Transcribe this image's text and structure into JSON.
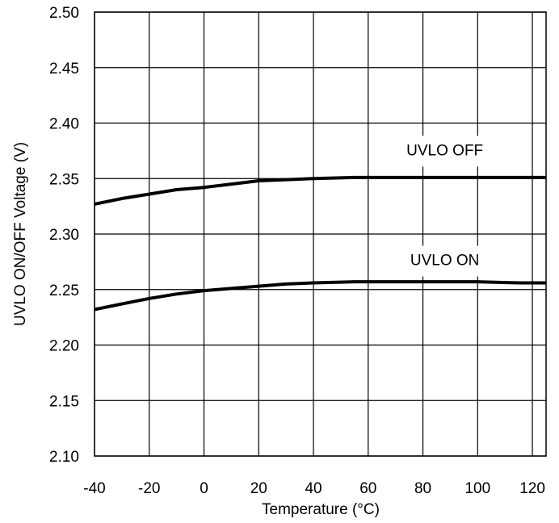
{
  "chart_data": {
    "type": "line",
    "title": "",
    "xlabel": "Temperature (°C)",
    "ylabel": "UVLO ON/OFF Voltage (V)",
    "xlim": [
      -40,
      125
    ],
    "ylim": [
      2.1,
      2.5
    ],
    "x_ticks": [
      -40,
      -20,
      0,
      20,
      40,
      60,
      80,
      100,
      120
    ],
    "x_tick_labels": [
      "-40",
      "-20",
      "0",
      "20",
      "40",
      "60",
      "80",
      "100",
      "120"
    ],
    "y_ticks": [
      2.1,
      2.15,
      2.2,
      2.25,
      2.3,
      2.35,
      2.4,
      2.45,
      2.5
    ],
    "y_tick_labels": [
      "2.10",
      "2.15",
      "2.20",
      "2.25",
      "2.30",
      "2.35",
      "2.40",
      "2.45",
      "2.50"
    ],
    "grid": true,
    "legend": "none",
    "series": [
      {
        "name": "UVLO OFF",
        "color": "#000000",
        "x": [
          -40,
          -30,
          -20,
          -10,
          0,
          10,
          20,
          30,
          40,
          55,
          70,
          85,
          100,
          115,
          125
        ],
        "y": [
          2.327,
          2.332,
          2.336,
          2.34,
          2.342,
          2.345,
          2.348,
          2.349,
          2.35,
          2.351,
          2.351,
          2.351,
          2.351,
          2.351,
          2.351
        ]
      },
      {
        "name": "UVLO ON",
        "color": "#000000",
        "x": [
          -40,
          -30,
          -20,
          -10,
          0,
          10,
          20,
          30,
          40,
          55,
          70,
          85,
          100,
          115,
          125
        ],
        "y": [
          2.232,
          2.237,
          2.242,
          2.246,
          2.249,
          2.251,
          2.253,
          2.255,
          2.256,
          2.257,
          2.257,
          2.257,
          2.257,
          2.256,
          2.256
        ]
      }
    ]
  }
}
